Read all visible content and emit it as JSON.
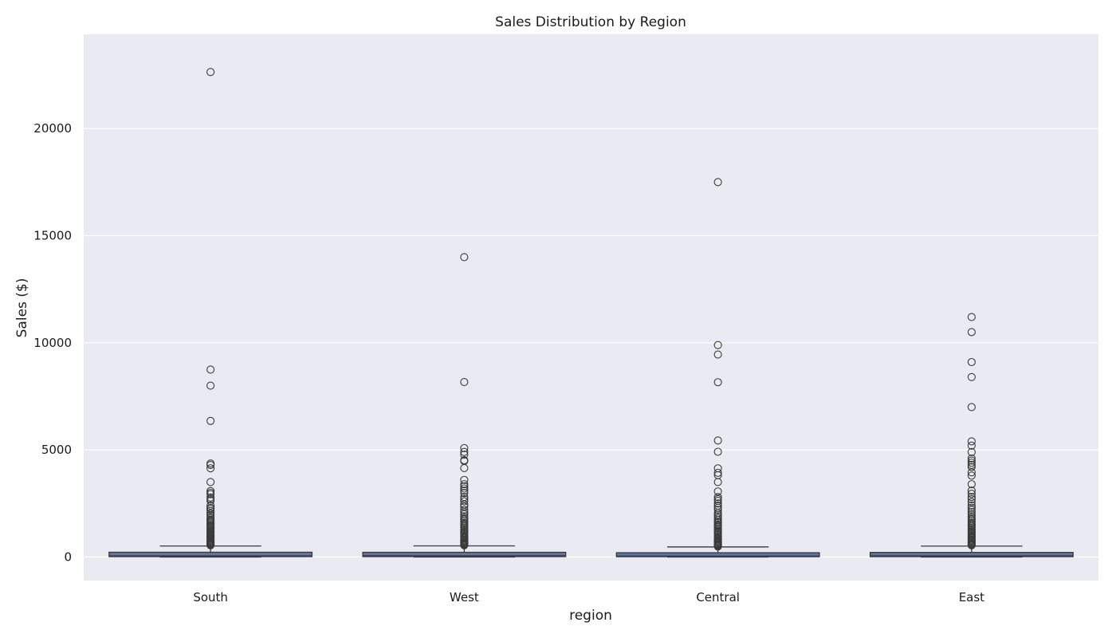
{
  "chart_data": {
    "type": "box",
    "title": "Sales Distribution by Region",
    "xlabel": "region",
    "ylabel": "Sales ($)",
    "categories": [
      "South",
      "West",
      "Central",
      "East"
    ],
    "ylim": [
      -1100,
      24400
    ],
    "yticks": [
      0,
      5000,
      10000,
      15000,
      20000
    ],
    "grid": true,
    "colors": {
      "plot_bg": "#eaeaf2",
      "grid": "#ffffff",
      "box_fill": "#5c77a6",
      "line": "#3a3a3a"
    },
    "boxes": [
      {
        "category": "South",
        "q1": 17,
        "median": 55,
        "q3": 224,
        "whisker_low": 1,
        "whisker_high": 515,
        "outliers": [
          22638,
          8750,
          7998,
          6354,
          4364,
          4297,
          4141,
          3500,
          3080,
          2999,
          2930,
          2780,
          2700,
          2620,
          2400,
          2300,
          2240,
          2150,
          2040,
          1960,
          1880,
          1800,
          1740,
          1680,
          1620,
          1560,
          1500,
          1450,
          1400,
          1350,
          1300,
          1250,
          1200,
          1150,
          1100,
          1050,
          1000,
          960,
          920,
          880,
          840,
          800,
          760,
          720,
          690,
          660,
          630,
          600,
          570,
          545
        ]
      },
      {
        "category": "West",
        "q1": 17,
        "median": 60,
        "q3": 220,
        "whisker_low": 1,
        "whisker_high": 520,
        "outliers": [
          13999,
          8167,
          5084,
          4906,
          4780,
          4520,
          4480,
          4150,
          3600,
          3400,
          3300,
          3200,
          3100,
          2990,
          2800,
          2700,
          2600,
          2450,
          2350,
          2200,
          2100,
          2000,
          1900,
          1820,
          1750,
          1680,
          1600,
          1540,
          1480,
          1420,
          1360,
          1300,
          1240,
          1180,
          1120,
          1060,
          1000,
          950,
          900,
          850,
          800,
          760,
          720,
          680,
          640,
          600,
          570,
          545
        ]
      },
      {
        "category": "Central",
        "q1": 14,
        "median": 45,
        "q3": 200,
        "whisker_low": 1,
        "whisker_high": 470,
        "outliers": [
          17500,
          9893,
          9450,
          8160,
          5440,
          4912,
          4140,
          3930,
          3820,
          3500,
          3060,
          2800,
          2700,
          2620,
          2500,
          2400,
          2300,
          2200,
          2060,
          1980,
          1900,
          1820,
          1740,
          1660,
          1600,
          1520,
          1460,
          1400,
          1340,
          1280,
          1220,
          1160,
          1100,
          1040,
          980,
          920,
          860,
          810,
          760,
          720,
          680,
          640,
          600,
          570,
          540,
          510,
          490
        ]
      },
      {
        "category": "East",
        "q1": 16,
        "median": 55,
        "q3": 215,
        "whisker_low": 1,
        "whisker_high": 510,
        "outliers": [
          11200,
          10500,
          9100,
          8400,
          6999,
          5400,
          5200,
          4900,
          4600,
          4500,
          4400,
          4300,
          4200,
          3950,
          3800,
          3400,
          3100,
          2950,
          2800,
          2700,
          2560,
          2400,
          2300,
          2200,
          2100,
          2000,
          1900,
          1820,
          1750,
          1680,
          1600,
          1540,
          1480,
          1420,
          1360,
          1300,
          1240,
          1180,
          1120,
          1060,
          1000,
          950,
          900,
          850,
          800,
          760,
          720,
          680,
          640,
          600,
          570,
          545
        ]
      }
    ]
  }
}
